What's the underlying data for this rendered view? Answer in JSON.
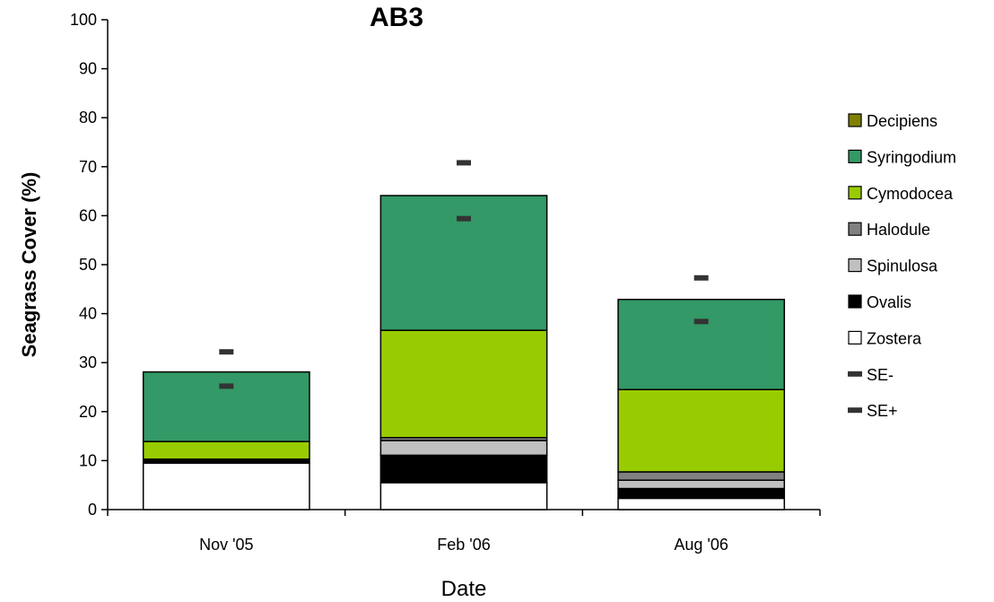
{
  "chart_data": {
    "type": "bar",
    "stacked": true,
    "title": "AB3",
    "xlabel": "Date",
    "ylabel": "Seagrass Cover (%)",
    "ylim": [
      0,
      100
    ],
    "yticks": [
      0,
      10,
      20,
      30,
      40,
      50,
      60,
      70,
      80,
      90,
      100
    ],
    "categories": [
      "Nov '05",
      "Feb '06",
      "Aug '06"
    ],
    "series": [
      {
        "name": "Zostera",
        "color": "#FFFFFF",
        "values": [
          9.5,
          5.5,
          2.3
        ]
      },
      {
        "name": "Ovalis",
        "color": "#000000",
        "values": [
          0.8,
          5.6,
          2.0
        ]
      },
      {
        "name": "Spinulosa",
        "color": "#C0C0C0",
        "values": [
          0.0,
          3.0,
          1.7
        ]
      },
      {
        "name": "Halodule",
        "color": "#808080",
        "values": [
          0.0,
          0.6,
          1.7
        ]
      },
      {
        "name": "Cymodocea",
        "color": "#99CC00",
        "values": [
          3.6,
          21.9,
          16.8
        ]
      },
      {
        "name": "Syringodium",
        "color": "#339966",
        "values": [
          14.2,
          27.5,
          18.4
        ]
      },
      {
        "name": "Decipiens",
        "color": "#808000",
        "values": [
          0,
          0,
          0
        ]
      }
    ],
    "error_markers": [
      {
        "name": "SE-",
        "color": "#333333",
        "values": [
          25.2,
          59.4,
          38.4
        ]
      },
      {
        "name": "SE+",
        "color": "#333333",
        "values": [
          32.2,
          70.8,
          47.3
        ]
      }
    ],
    "legend": {
      "placement": "right",
      "entries": [
        "Decipiens",
        "Syringodium",
        "Cymodocea",
        "Halodule",
        "Spinulosa",
        "Ovalis",
        "Zostera",
        "SE-",
        "SE+"
      ]
    }
  }
}
